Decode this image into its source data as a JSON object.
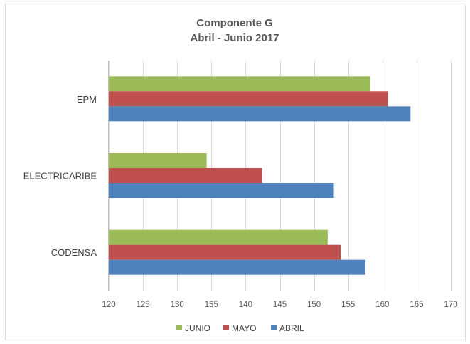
{
  "chart_data": {
    "type": "bar",
    "orientation": "horizontal",
    "title": [
      "Componente G",
      "Abril - Junio 2017"
    ],
    "categories": [
      "EPM",
      "ELECTRICARIBE",
      "CODENSA"
    ],
    "series": [
      {
        "name": "JUNIO",
        "color": "#9bbb59",
        "values": [
          158.2,
          134.3,
          152.0
        ]
      },
      {
        "name": "MAYO",
        "color": "#c0504d",
        "values": [
          160.8,
          142.4,
          153.9
        ]
      },
      {
        "name": "ABRIL",
        "color": "#4f81bd",
        "values": [
          164.1,
          152.9,
          157.5
        ]
      }
    ],
    "xlim": [
      120,
      170
    ],
    "xticks": [
      "120",
      "125",
      "130",
      "135",
      "140",
      "145",
      "150",
      "155",
      "160",
      "165",
      "170"
    ],
    "legend_position": "bottom",
    "grid": "vertical"
  }
}
